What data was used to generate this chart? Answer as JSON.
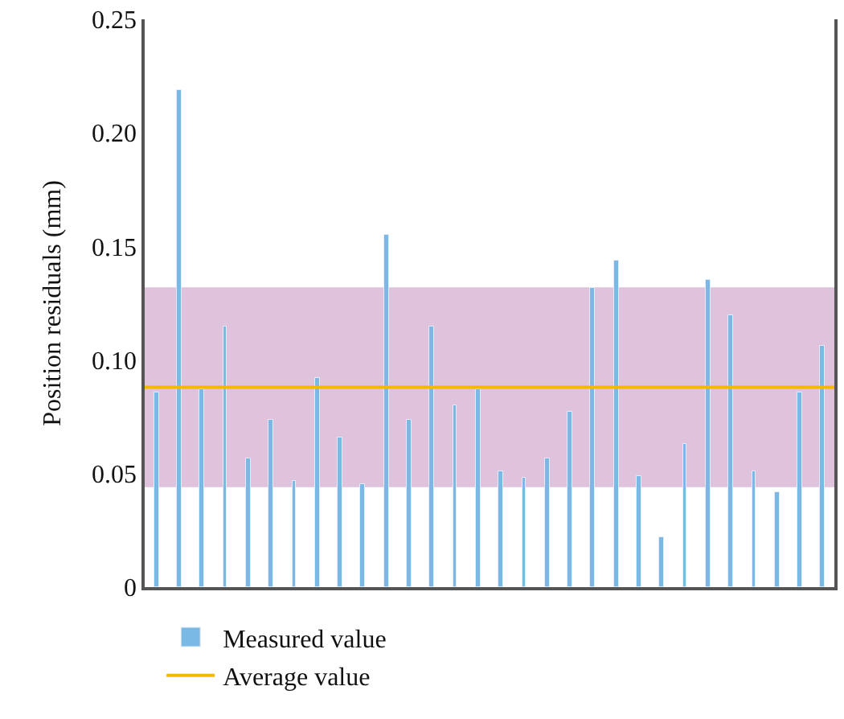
{
  "chart_data": {
    "type": "bar",
    "ylabel": "Position residuals (mm)",
    "categories": [
      null,
      null,
      null,
      null,
      null,
      null,
      null,
      null,
      null,
      null,
      null,
      null,
      null,
      null,
      null,
      null,
      null,
      null,
      null,
      null,
      null,
      null,
      null,
      null,
      null,
      null,
      null,
      null,
      null,
      null
    ],
    "series": [
      {
        "name": "Measured value",
        "color": "#7ab8e6",
        "values": [
          0.086,
          0.219,
          0.087,
          0.115,
          0.057,
          0.074,
          0.047,
          0.092,
          0.066,
          0.045,
          0.155,
          0.074,
          0.115,
          0.08,
          0.087,
          0.051,
          0.048,
          0.057,
          0.077,
          0.132,
          0.144,
          0.049,
          0.022,
          0.063,
          0.135,
          0.12,
          0.051,
          0.042,
          0.086,
          0.106
        ]
      }
    ],
    "ylim": [
      0,
      0.25
    ],
    "yticks": [
      0,
      0.05,
      {
        "value": 0.1,
        "label": "0.10"
      },
      0.15,
      {
        "value": 0.2,
        "label": "0.20"
      },
      0.25
    ],
    "ref_lines": [
      {
        "axis": "y",
        "value": 0.088,
        "label": "Average value",
        "color": "#f5b800"
      }
    ],
    "bands": [
      {
        "axis": "y",
        "from": 0.044,
        "to": 0.132,
        "color": "#dfc3dc"
      }
    ],
    "tick_labels": "y",
    "grid": false,
    "legend": "bottom"
  }
}
